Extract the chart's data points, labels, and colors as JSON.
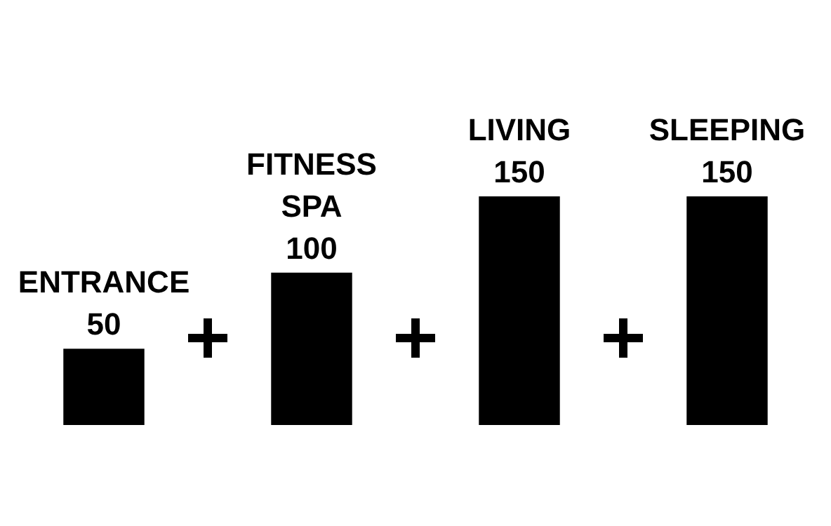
{
  "chart_data": {
    "type": "bar",
    "categories": [
      "ENTRANCE",
      "FITNESS SPA",
      "LIVING",
      "SLEEPING"
    ],
    "values": [
      50,
      100,
      150,
      150
    ],
    "color": "#000000",
    "data_labels": true
  }
}
